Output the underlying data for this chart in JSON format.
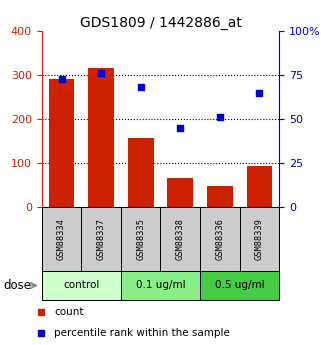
{
  "title": "GDS1809 / 1442886_at",
  "samples": [
    "GSM88334",
    "GSM88337",
    "GSM88335",
    "GSM88338",
    "GSM88336",
    "GSM88339"
  ],
  "bar_values": [
    290,
    315,
    157,
    65,
    48,
    93
  ],
  "scatter_values": [
    73,
    76,
    68,
    45,
    51,
    65
  ],
  "bar_color": "#cc2200",
  "scatter_color": "#0000cc",
  "left_ylim": [
    0,
    400
  ],
  "right_ylim": [
    0,
    100
  ],
  "left_yticks": [
    0,
    100,
    200,
    300,
    400
  ],
  "right_yticks": [
    0,
    25,
    50,
    75,
    100
  ],
  "right_yticklabels": [
    "0",
    "25",
    "50",
    "75",
    "100%"
  ],
  "groups": [
    {
      "label": "control",
      "color": "#ccffcc",
      "start": 0,
      "end": 1
    },
    {
      "label": "0.1 ug/ml",
      "color": "#88ee88",
      "start": 2,
      "end": 3
    },
    {
      "label": "0.5 ug/ml",
      "color": "#44cc44",
      "start": 4,
      "end": 5
    }
  ],
  "dose_label": "dose",
  "legend_bar_label": "count",
  "legend_scatter_label": "percentile rank within the sample",
  "sample_box_color": "#cccccc",
  "left_tick_color": "#cc2200",
  "right_tick_color": "#0000cc",
  "gridline_ticks": [
    100,
    200,
    300
  ]
}
